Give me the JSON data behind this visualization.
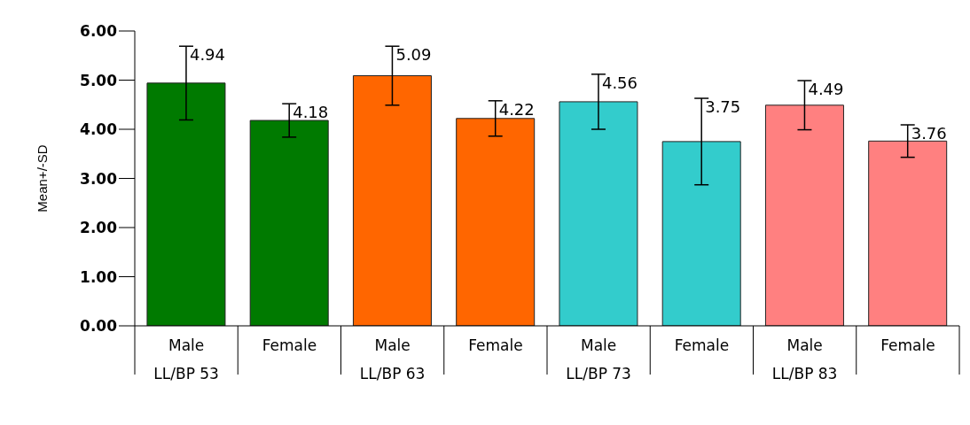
{
  "chart_data": {
    "type": "bar",
    "ylabel": "Mean+/-SD",
    "categories": [
      "Male\nLL/BP 53",
      "Female",
      "Male\nLL/BP 63",
      "Female",
      "Male\nLL/BP 73",
      "Female",
      "Male\nLL/BP 83",
      "Female"
    ],
    "values": [
      4.94,
      4.18,
      5.09,
      4.22,
      4.56,
      3.75,
      4.49,
      3.76
    ],
    "errors": [
      0.75,
      0.34,
      0.6,
      0.36,
      0.56,
      0.88,
      0.5,
      0.33
    ],
    "colors": [
      "#007a00",
      "#007a00",
      "#ff6600",
      "#ff6600",
      "#33cccc",
      "#33cccc",
      "#ff8080",
      "#ff8080"
    ],
    "ylim": [
      0,
      6
    ],
    "yticks": [
      {
        "value": 0,
        "label": "0.00"
      },
      {
        "value": 1,
        "label": "1.00"
      },
      {
        "value": 2,
        "label": "2.00"
      },
      {
        "value": 3,
        "label": "3.00"
      },
      {
        "value": 4,
        "label": "4.00"
      },
      {
        "value": 5,
        "label": "5.00"
      },
      {
        "value": 6,
        "label": "6.00"
      }
    ],
    "data_labels": true,
    "grid": false,
    "legend": false
  }
}
